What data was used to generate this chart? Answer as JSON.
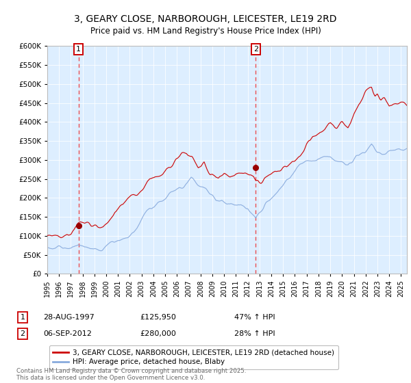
{
  "title_line1": "3, GEARY CLOSE, NARBOROUGH, LEICESTER, LE19 2RD",
  "title_line2": "Price paid vs. HM Land Registry's House Price Index (HPI)",
  "ytick_values": [
    0,
    50000,
    100000,
    150000,
    200000,
    250000,
    300000,
    350000,
    400000,
    450000,
    500000,
    550000,
    600000
  ],
  "xtick_years": [
    1995,
    1996,
    1997,
    1998,
    1999,
    2000,
    2001,
    2002,
    2003,
    2004,
    2005,
    2006,
    2007,
    2008,
    2009,
    2010,
    2011,
    2012,
    2013,
    2014,
    2015,
    2016,
    2017,
    2018,
    2019,
    2020,
    2021,
    2022,
    2023,
    2024,
    2025
  ],
  "sale1_year": 1997.66,
  "sale1_price": 125950,
  "sale1_label": "1",
  "sale1_date": "28-AUG-1997",
  "sale1_hpi_pct": "47% ↑ HPI",
  "sale2_year": 2012.68,
  "sale2_price": 280000,
  "sale2_label": "2",
  "sale2_date": "06-SEP-2012",
  "sale2_hpi_pct": "28% ↑ HPI",
  "red_line_color": "#cc0000",
  "blue_line_color": "#88aadd",
  "vline_color": "#ee3333",
  "dot_color": "#990000",
  "bg_color": "#ddeeff",
  "legend_label_red": "3, GEARY CLOSE, NARBOROUGH, LEICESTER, LE19 2RD (detached house)",
  "legend_label_blue": "HPI: Average price, detached house, Blaby",
  "footer_text": "Contains HM Land Registry data © Crown copyright and database right 2025.\nThis data is licensed under the Open Government Licence v3.0."
}
